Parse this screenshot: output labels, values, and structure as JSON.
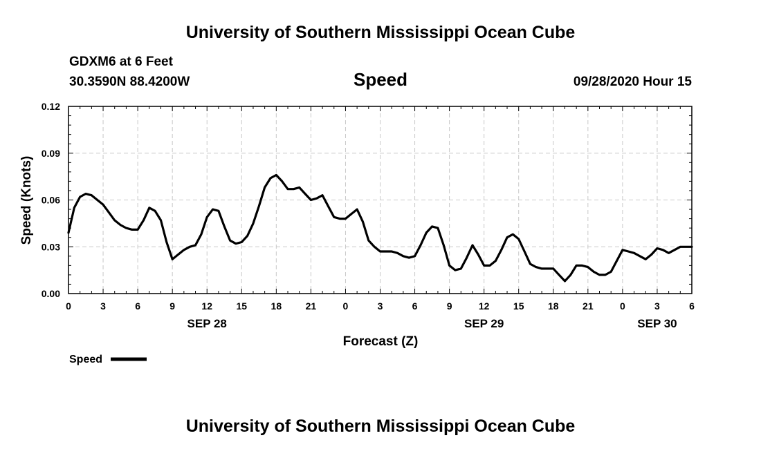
{
  "header": {
    "title": "University of Southern Mississippi Ocean Cube",
    "station": "GDXM6 at 6 Feet",
    "location": "30.3590N 88.4200W",
    "chart_name": "Speed",
    "run_time": "09/28/2020 Hour 15"
  },
  "footer": {
    "title": "University of Southern Mississippi Ocean Cube"
  },
  "chart_data": {
    "type": "line",
    "title": "Speed",
    "xlabel": "Forecast (Z)",
    "ylabel": "Speed (Knots)",
    "x_unit": "forecast hour",
    "xlim": [
      0,
      54
    ],
    "ylim": [
      0,
      0.12
    ],
    "grid": true,
    "y_ticks": [
      0,
      0.03,
      0.06,
      0.09,
      0.12
    ],
    "y_tick_labels": [
      "0.00",
      "0.03",
      "0.06",
      "0.09",
      "0.12"
    ],
    "x_ticks": [
      0,
      3,
      6,
      9,
      12,
      15,
      18,
      21,
      24,
      27,
      30,
      33,
      36,
      39,
      42,
      45,
      48,
      51,
      54
    ],
    "x_tick_labels": [
      "0",
      "3",
      "6",
      "9",
      "12",
      "15",
      "18",
      "21",
      "0",
      "3",
      "6",
      "9",
      "12",
      "15",
      "18",
      "21",
      "0",
      "3",
      "6"
    ],
    "date_labels": [
      {
        "x": 12,
        "label": "SEP 28"
      },
      {
        "x": 36,
        "label": "SEP 29"
      },
      {
        "x": 51,
        "label": "SEP 30"
      }
    ],
    "legend": {
      "label": "Speed",
      "placement": "bottom-left"
    },
    "series": [
      {
        "name": "Speed",
        "color": "#000000",
        "x": [
          0,
          0.5,
          1,
          1.5,
          2,
          2.5,
          3,
          3.5,
          4,
          4.5,
          5,
          5.5,
          6,
          6.5,
          7,
          7.5,
          8,
          8.5,
          9,
          9.5,
          10,
          10.5,
          11,
          11.5,
          12,
          12.5,
          13,
          13.5,
          14,
          14.5,
          15,
          15.5,
          16,
          16.5,
          17,
          17.5,
          18,
          18.5,
          19,
          19.5,
          20,
          20.5,
          21,
          21.5,
          22,
          22.5,
          23,
          23.5,
          24,
          24.5,
          25,
          25.5,
          26,
          26.5,
          27,
          27.5,
          28,
          28.5,
          29,
          29.5,
          30,
          30.5,
          31,
          31.5,
          32,
          32.5,
          33,
          33.5,
          34,
          34.5,
          35,
          35.5,
          36,
          36.5,
          37,
          37.5,
          38,
          38.5,
          39,
          39.5,
          40,
          40.5,
          41,
          41.5,
          42,
          42.5,
          43,
          43.5,
          44,
          44.5,
          45,
          45.5,
          46,
          46.5,
          47,
          47.5,
          48,
          48.5,
          49,
          49.5,
          50,
          50.5,
          51,
          51.5,
          52,
          52.5,
          53,
          53.5,
          54
        ],
        "values": [
          0.039,
          0.055,
          0.062,
          0.064,
          0.063,
          0.06,
          0.057,
          0.052,
          0.047,
          0.044,
          0.042,
          0.041,
          0.041,
          0.047,
          0.055,
          0.053,
          0.047,
          0.033,
          0.022,
          0.025,
          0.028,
          0.03,
          0.031,
          0.038,
          0.049,
          0.054,
          0.053,
          0.043,
          0.034,
          0.032,
          0.033,
          0.037,
          0.045,
          0.056,
          0.068,
          0.074,
          0.076,
          0.072,
          0.067,
          0.067,
          0.068,
          0.064,
          0.06,
          0.061,
          0.063,
          0.056,
          0.049,
          0.048,
          0.048,
          0.051,
          0.054,
          0.046,
          0.034,
          0.03,
          0.027,
          0.027,
          0.027,
          0.026,
          0.024,
          0.023,
          0.024,
          0.031,
          0.039,
          0.043,
          0.042,
          0.031,
          0.018,
          0.015,
          0.016,
          0.023,
          0.031,
          0.025,
          0.018,
          0.018,
          0.021,
          0.028,
          0.036,
          0.038,
          0.035,
          0.027,
          0.019,
          0.017,
          0.016,
          0.016,
          0.016,
          0.012,
          0.008,
          0.012,
          0.018,
          0.018,
          0.017,
          0.014,
          0.012,
          0.012,
          0.014,
          0.021,
          0.028,
          0.027,
          0.026,
          0.024,
          0.022,
          0.025,
          0.029,
          0.028,
          0.026,
          0.028,
          0.03,
          0.03,
          0.03
        ]
      }
    ]
  }
}
